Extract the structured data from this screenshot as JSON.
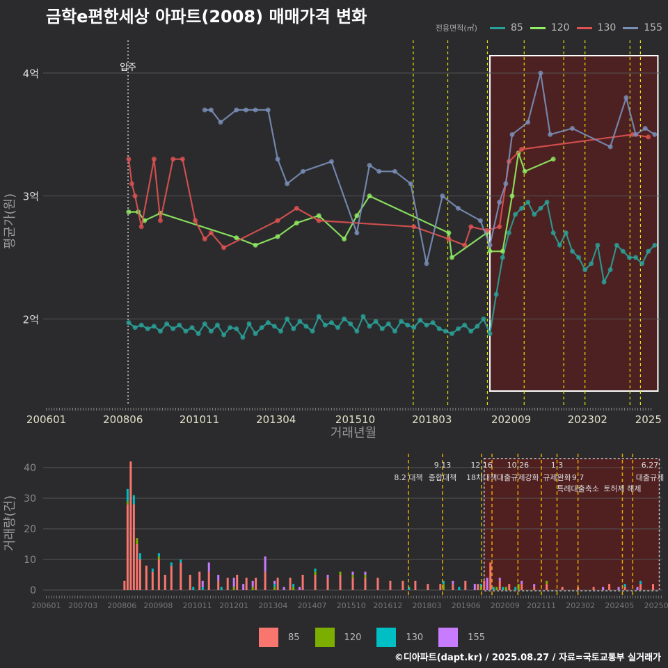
{
  "title": "금학e편한세상 아파트(2008) 매매가격 변화",
  "footer": "©디아파트(dapt.kr) / 2025.08.27 / 자료=국토교통부 실거래가",
  "colors": {
    "background": "#2b2b2d",
    "grid": "#555555",
    "area85": "#2aa198",
    "area120": "#90ee62",
    "area130": "#e05252",
    "area155": "#7a8fb8",
    "bar85": "#f8766d",
    "bar120": "#7cae00",
    "bar130": "#00bfc4",
    "bar155": "#c77cff",
    "policy_line": "#e8e800",
    "policy_line_bottom": "#e8a800",
    "highlight_fill": "#5a1e1e",
    "highlight_border": "#ffffff"
  },
  "top_legend": {
    "title": "전용면적(㎡)",
    "items": [
      {
        "label": "85",
        "color": "#2aa198"
      },
      {
        "label": "120",
        "color": "#90ee62"
      },
      {
        "label": "130",
        "color": "#e05252"
      },
      {
        "label": "155",
        "color": "#7a8fb8"
      }
    ]
  },
  "bottom_legend": {
    "items": [
      {
        "label": "85",
        "color": "#f8766d"
      },
      {
        "label": "120",
        "color": "#7cae00"
      },
      {
        "label": "130",
        "color": "#00bfc4"
      },
      {
        "label": "155",
        "color": "#c77cff"
      }
    ]
  },
  "chart_data": [
    {
      "type": "line",
      "title": "금학e편한세상 아파트(2008) 매매가격 변화",
      "xlabel": "거래년월",
      "ylabel": "평균가(원)",
      "x_tick_labels": [
        "200601",
        "200806",
        "201011",
        "201304",
        "201510",
        "201803",
        "202009",
        "202302",
        "2025"
      ],
      "x_ticks": [
        2006.0,
        2008.42,
        2010.83,
        2013.25,
        2015.75,
        2018.17,
        2020.67,
        2023.08,
        2025.0
      ],
      "xlim": [
        2005.9,
        2025.4
      ],
      "ylim": [
        1.3,
        4.3
      ],
      "y_ticks": [
        2,
        3,
        4
      ],
      "y_tick_labels": [
        "2억",
        "3억",
        "4억"
      ],
      "move_in": {
        "x": 2008.58,
        "label": "입주"
      },
      "policy_lines": [
        2017.58,
        2018.67,
        2019.92,
        2021.08,
        2022.33,
        2023.0,
        2024.42,
        2024.75
      ],
      "highlight_range": [
        2020.0,
        2025.3
      ],
      "series": [
        {
          "name": "85",
          "x": [
            2008.6,
            2008.8,
            2009.0,
            2009.2,
            2009.4,
            2009.6,
            2009.8,
            2010.0,
            2010.2,
            2010.4,
            2010.6,
            2010.8,
            2011.0,
            2011.2,
            2011.4,
            2011.6,
            2011.8,
            2012.0,
            2012.2,
            2012.4,
            2012.6,
            2012.8,
            2013.0,
            2013.2,
            2013.4,
            2013.6,
            2013.8,
            2014.0,
            2014.2,
            2014.4,
            2014.6,
            2014.8,
            2015.0,
            2015.2,
            2015.4,
            2015.6,
            2015.8,
            2016.0,
            2016.2,
            2016.4,
            2016.6,
            2016.8,
            2017.0,
            2017.2,
            2017.4,
            2017.6,
            2017.8,
            2018.0,
            2018.2,
            2018.4,
            2018.6,
            2018.8,
            2019.0,
            2019.2,
            2019.4,
            2019.6,
            2019.8,
            2020.0,
            2020.2,
            2020.4,
            2020.6,
            2020.8,
            2021.0,
            2021.2,
            2021.4,
            2021.6,
            2021.8,
            2022.0,
            2022.2,
            2022.4,
            2022.6,
            2022.8,
            2023.0,
            2023.2,
            2023.4,
            2023.6,
            2023.8,
            2024.0,
            2024.2,
            2024.4,
            2024.6,
            2024.8,
            2025.0,
            2025.2
          ],
          "values": [
            1.97,
            1.93,
            1.95,
            1.92,
            1.94,
            1.9,
            1.96,
            1.92,
            1.95,
            1.9,
            1.93,
            1.88,
            1.96,
            1.9,
            1.95,
            1.87,
            1.93,
            1.92,
            1.85,
            1.96,
            1.88,
            1.93,
            1.97,
            1.94,
            1.9,
            2.0,
            1.92,
            1.98,
            1.94,
            1.9,
            2.02,
            1.95,
            1.97,
            1.93,
            2.0,
            1.96,
            1.9,
            2.02,
            1.94,
            1.98,
            1.92,
            1.96,
            1.9,
            1.98,
            1.95,
            1.93,
            1.99,
            1.95,
            1.97,
            1.92,
            1.9,
            1.88,
            1.92,
            1.95,
            1.9,
            1.94,
            2.0,
            1.88,
            2.2,
            2.5,
            2.7,
            2.85,
            2.9,
            2.95,
            2.85,
            2.9,
            2.95,
            2.7,
            2.6,
            2.7,
            2.55,
            2.5,
            2.4,
            2.45,
            2.6,
            2.3,
            2.4,
            2.6,
            2.55,
            2.5,
            2.5,
            2.45,
            2.55,
            2.6
          ]
        },
        {
          "name": "120",
          "x": [
            2008.6,
            2008.9,
            2009.1,
            2009.6,
            2012.0,
            2012.6,
            2013.3,
            2013.9,
            2014.6,
            2015.4,
            2015.8,
            2016.2,
            2018.7,
            2018.8,
            2019.9,
            2020.0,
            2020.4,
            2020.7,
            2020.9,
            2021.1,
            2022.0
          ],
          "values": [
            2.87,
            2.87,
            2.8,
            2.86,
            2.66,
            2.6,
            2.67,
            2.78,
            2.84,
            2.65,
            2.84,
            3.0,
            2.7,
            2.5,
            2.7,
            2.55,
            2.55,
            3.0,
            3.35,
            3.2,
            3.3
          ]
        },
        {
          "name": "130",
          "x": [
            2008.6,
            2008.7,
            2008.8,
            2009.0,
            2009.4,
            2009.6,
            2010.0,
            2010.3,
            2010.7,
            2011.0,
            2011.2,
            2011.6,
            2013.3,
            2013.9,
            2014.6,
            2017.6,
            2018.7,
            2019.2,
            2019.4,
            2019.9,
            2020.3,
            2020.6,
            2021.0,
            2024.5,
            2025.0
          ],
          "values": [
            3.3,
            3.1,
            3.0,
            2.75,
            3.3,
            2.8,
            3.3,
            3.3,
            2.8,
            2.65,
            2.7,
            2.58,
            2.8,
            2.9,
            2.8,
            2.75,
            2.65,
            2.6,
            2.75,
            2.72,
            2.75,
            3.28,
            3.38,
            3.5,
            3.48
          ]
        },
        {
          "name": "155",
          "x": [
            2011.0,
            2011.2,
            2011.5,
            2012.0,
            2012.3,
            2012.6,
            2013.0,
            2013.3,
            2013.6,
            2014.1,
            2015.0,
            2015.8,
            2016.2,
            2016.5,
            2017.0,
            2017.5,
            2018.0,
            2018.5,
            2019.0,
            2019.7,
            2020.0,
            2020.3,
            2020.5,
            2020.7,
            2021.2,
            2021.6,
            2021.9,
            2022.6,
            2023.8,
            2024.3,
            2024.6,
            2024.9,
            2025.2
          ],
          "values": [
            3.7,
            3.7,
            3.6,
            3.7,
            3.7,
            3.7,
            3.7,
            3.3,
            3.1,
            3.2,
            3.28,
            2.7,
            3.25,
            3.2,
            3.2,
            3.1,
            2.45,
            3.0,
            2.9,
            2.8,
            2.6,
            2.95,
            3.1,
            3.5,
            3.6,
            4.0,
            3.5,
            3.55,
            3.4,
            3.8,
            3.5,
            3.55,
            3.5
          ]
        }
      ]
    },
    {
      "type": "bar",
      "ylabel": "거래량(건)",
      "ylim": [
        0,
        45
      ],
      "y_ticks": [
        0,
        10,
        20,
        30,
        40
      ],
      "x_tick_labels": [
        "200601",
        "200703",
        "200806",
        "200908",
        "201011",
        "201201",
        "201304",
        "201407",
        "201510",
        "201612",
        "201803",
        "201906",
        "202009",
        "202111",
        "202302",
        "202405",
        "202508"
      ],
      "x_ticks": [
        2006.0,
        2007.17,
        2008.42,
        2009.58,
        2010.83,
        2012.0,
        2013.25,
        2014.5,
        2015.75,
        2016.92,
        2018.17,
        2019.42,
        2020.67,
        2021.83,
        2023.08,
        2024.33,
        2025.58
      ],
      "xlim": [
        2005.9,
        2025.7
      ],
      "policy_lines": [
        2017.58,
        2018.67,
        2019.92,
        2020.25,
        2021.08,
        2021.83,
        2022.33,
        2023.0,
        2024.42,
        2024.75
      ],
      "highlight_range": [
        2020.0,
        2025.6
      ],
      "annotations": [
        {
          "x": 2017.58,
          "row": 1,
          "text": "8.2 대책"
        },
        {
          "x": 2018.67,
          "row": 0,
          "text": "9.13"
        },
        {
          "x": 2018.67,
          "row": 1,
          "text": "종합대책"
        },
        {
          "x": 2019.92,
          "row": 0,
          "text": "12.16"
        },
        {
          "x": 2019.92,
          "row": 1,
          "text": "18차대책"
        },
        {
          "x": 2021.08,
          "row": 0,
          "text": "10.26"
        },
        {
          "x": 2021.08,
          "row": 1,
          "text": "대출규제강화"
        },
        {
          "x": 2022.33,
          "row": 0,
          "text": "1.3"
        },
        {
          "x": 2022.33,
          "row": 1,
          "text": "규제완화"
        },
        {
          "x": 2023.0,
          "row": 1,
          "text": "9.7"
        },
        {
          "x": 2023.0,
          "row": 2,
          "text": "특례대출축소"
        },
        {
          "x": 2024.42,
          "row": 2,
          "text": "토허제 해제"
        },
        {
          "x": 2025.3,
          "row": 0,
          "text": "6.27"
        },
        {
          "x": 2025.3,
          "row": 1,
          "text": "대출규제"
        }
      ],
      "series": [
        {
          "name": "85",
          "x": [
            2008.5,
            2008.6,
            2008.7,
            2008.8,
            2008.9,
            2009.0,
            2009.2,
            2009.4,
            2009.6,
            2009.8,
            2010.0,
            2010.3,
            2010.6,
            2010.9,
            2011.2,
            2011.5,
            2011.8,
            2012.1,
            2012.4,
            2012.7,
            2013.0,
            2013.4,
            2013.8,
            2014.2,
            2014.6,
            2015.0,
            2015.4,
            2015.8,
            2016.2,
            2016.6,
            2017.0,
            2017.4,
            2017.8,
            2018.2,
            2018.6,
            2019.0,
            2019.4,
            2019.8,
            2020.0,
            2020.2,
            2020.5,
            2020.8,
            2021.2,
            2021.6,
            2022.0,
            2022.5,
            2023.0,
            2023.5,
            2024.0,
            2024.5,
            2025.0,
            2025.4
          ],
          "values": [
            3,
            28,
            42,
            28,
            15,
            10,
            8,
            6,
            10,
            5,
            8,
            9,
            5,
            6,
            6,
            3,
            4,
            5,
            4,
            4,
            6,
            4,
            4,
            5,
            5,
            4,
            5,
            4,
            4,
            4,
            3,
            3,
            3,
            2,
            2,
            2,
            3,
            2,
            3,
            9,
            3,
            2,
            2,
            1,
            2,
            1,
            1,
            1,
            2,
            1,
            2,
            2
          ]
        },
        {
          "name": "120",
          "x": [
            2008.6,
            2008.9,
            2009.6,
            2012.0,
            2012.6,
            2013.3,
            2013.9,
            2014.6,
            2015.4,
            2015.8,
            2016.2,
            2018.7,
            2019.9,
            2020.4,
            2020.7,
            2021.1,
            2022.0
          ],
          "values": [
            1,
            2,
            1,
            1,
            1,
            1,
            1,
            1,
            1,
            1,
            1,
            2,
            1,
            1,
            1,
            2,
            1
          ]
        },
        {
          "name": "130",
          "x": [
            2008.6,
            2008.8,
            2009.0,
            2009.4,
            2009.6,
            2010.0,
            2010.3,
            2010.7,
            2011.0,
            2011.6,
            2013.3,
            2013.9,
            2014.6,
            2017.6,
            2018.7,
            2019.2,
            2019.9,
            2020.3,
            2020.6,
            2021.0,
            2024.5,
            2025.0
          ],
          "values": [
            4,
            3,
            2,
            1,
            1,
            1,
            1,
            1,
            1,
            1,
            1,
            1,
            1,
            1,
            1,
            1,
            1,
            1,
            1,
            1,
            1,
            1
          ]
        },
        {
          "name": "155",
          "x": [
            2011.0,
            2011.2,
            2011.5,
            2012.0,
            2012.3,
            2012.6,
            2013.0,
            2013.3,
            2013.6,
            2014.1,
            2015.0,
            2015.8,
            2016.2,
            2019.0,
            2019.7,
            2020.1,
            2020.5,
            2021.2,
            2021.6,
            2023.8,
            2024.3,
            2024.9
          ],
          "values": [
            2,
            3,
            2,
            3,
            2,
            2,
            5,
            1,
            1,
            1,
            1,
            1,
            1,
            1,
            2,
            4,
            1,
            1,
            1,
            1,
            1,
            1
          ]
        }
      ]
    }
  ]
}
